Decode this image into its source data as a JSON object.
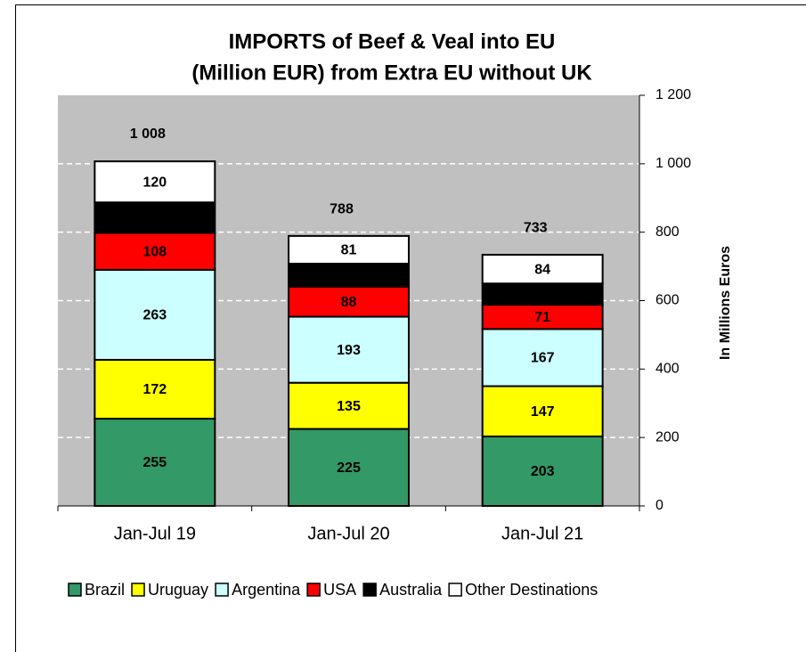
{
  "chart_data": {
    "type": "stacked_bar",
    "title": [
      "IMPORTS of Beef & Veal into EU",
      "(Million EUR) from Extra EU without UK"
    ],
    "y_label": "In Millions Euros",
    "categories": [
      "Jan-Jul 19",
      "Jan-Jul 20",
      "Jan-Jul 21"
    ],
    "series": [
      {
        "name": "Brazil",
        "color": "#339966",
        "values": [
          255,
          225,
          203
        ]
      },
      {
        "name": "Uruguay",
        "color": "#ffff00",
        "values": [
          172,
          135,
          147
        ]
      },
      {
        "name": "Argentina",
        "color": "#ccffff",
        "values": [
          263,
          193,
          167
        ]
      },
      {
        "name": "USA",
        "color": "#ff0000",
        "values": [
          108,
          88,
          71
        ]
      },
      {
        "name": "Australia",
        "color": "#000000",
        "values": [
          89,
          67,
          62
        ]
      },
      {
        "name": "Other Destinations",
        "color": "#ffffff",
        "values": [
          120,
          81,
          84
        ]
      }
    ],
    "totals": {
      "values": [
        1008,
        788,
        733
      ],
      "value_labels": [
        "1 008",
        "788",
        "733"
      ]
    },
    "ylim": [
      0,
      1200
    ],
    "yticks": [
      0,
      200,
      400,
      600,
      800,
      {
        "value": 1000,
        "label": "1 000"
      },
      {
        "value": 1200,
        "label": "1 200"
      }
    ],
    "y_axis_side": "right",
    "grid": true,
    "plot_background": "#c0c0c0",
    "legend_position": "bottom"
  }
}
